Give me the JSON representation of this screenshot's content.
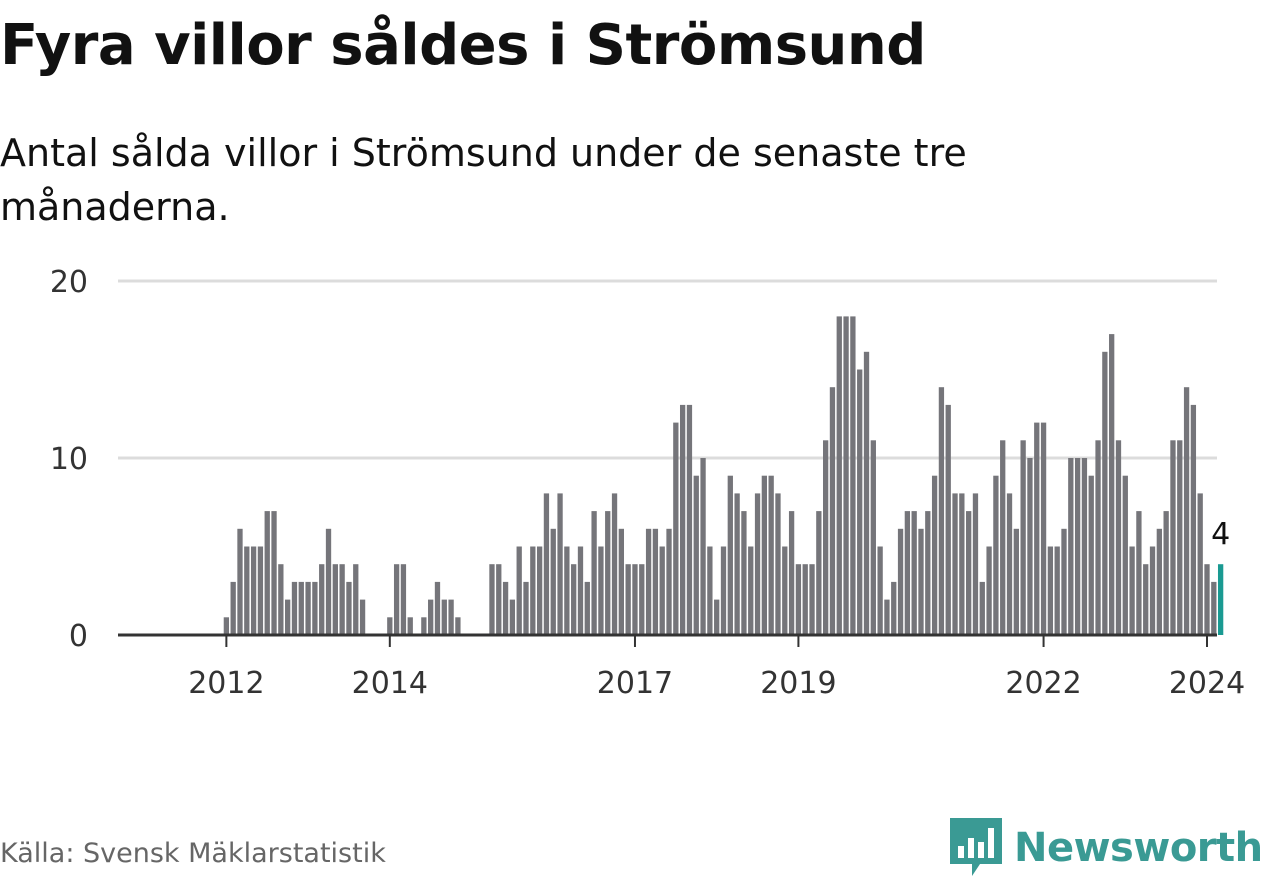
{
  "chart_data": {
    "type": "bar",
    "title": "Fyra villor såldes i Strömsund",
    "subtitle": "Antal sålda villor i Strömsund under de senaste tre månaderna.",
    "xlabel": "",
    "ylabel": "",
    "ylim": [
      0,
      20
    ],
    "yticks": [
      0,
      10,
      20
    ],
    "x_start": "2011-01",
    "x_tick_labels": [
      "2012",
      "2014",
      "2017",
      "2019",
      "2022",
      "2024"
    ],
    "values": [
      0,
      0,
      0,
      0,
      0,
      0,
      0,
      0,
      0,
      0,
      0,
      0,
      1,
      3,
      6,
      5,
      5,
      5,
      7,
      7,
      4,
      2,
      3,
      3,
      3,
      3,
      4,
      6,
      4,
      4,
      3,
      4,
      2,
      0,
      0,
      0,
      1,
      4,
      4,
      1,
      0,
      1,
      2,
      3,
      2,
      2,
      1,
      0,
      0,
      0,
      0,
      4,
      4,
      3,
      2,
      5,
      3,
      5,
      5,
      8,
      6,
      8,
      5,
      4,
      5,
      3,
      7,
      5,
      7,
      8,
      6,
      4,
      4,
      4,
      6,
      6,
      5,
      6,
      12,
      13,
      13,
      9,
      10,
      5,
      2,
      5,
      9,
      8,
      7,
      5,
      8,
      9,
      9,
      8,
      5,
      7,
      4,
      4,
      4,
      7,
      11,
      14,
      18,
      18,
      18,
      15,
      16,
      11,
      5,
      2,
      3,
      6,
      7,
      7,
      6,
      7,
      9,
      14,
      13,
      8,
      8,
      7,
      8,
      3,
      5,
      9,
      11,
      8,
      6,
      11,
      10,
      12,
      12,
      5,
      5,
      6,
      10,
      10,
      10,
      9,
      11,
      16,
      17,
      11,
      9,
      5,
      7,
      4,
      5,
      6,
      7,
      11,
      11,
      14,
      13,
      8,
      4,
      3,
      4
    ],
    "highlight": {
      "index": 158,
      "label": "4",
      "color": "#1a9a92"
    },
    "bar_color": "#75757a"
  },
  "footer": {
    "source": "Källa: Svensk Mäklarstatistik",
    "brand": "Newsworthy",
    "brand_color": "#3a9a94",
    "brand_icon": "newsworthy-logo-icon"
  }
}
